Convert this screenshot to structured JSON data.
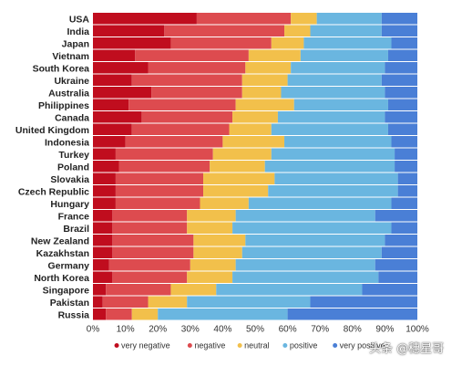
{
  "chart_data": {
    "type": "bar",
    "orientation": "horizontal",
    "stacked": true,
    "normalized": true,
    "categories": [
      "USA",
      "India",
      "Japan",
      "Vietnam",
      "South Korea",
      "Ukraine",
      "Australia",
      "Philippines",
      "Canada",
      "United Kingdom",
      "Indonesia",
      "Turkey",
      "Poland",
      "Slovakia",
      "Czech Republic",
      "Hungary",
      "France",
      "Brazil",
      "New Zealand",
      "Kazakhstan",
      "Germany",
      "North Korea",
      "Singapore",
      "Pakistan",
      "Russia"
    ],
    "series": [
      {
        "name": "very negative",
        "color": "#c00d1e",
        "values": [
          32,
          22,
          24,
          13,
          17,
          12,
          18,
          11,
          15,
          12,
          10,
          7,
          8,
          7,
          7,
          7,
          6,
          6,
          6,
          6,
          5,
          6,
          4,
          3,
          4
        ]
      },
      {
        "name": "negative",
        "color": "#dd4b4f",
        "values": [
          29,
          37,
          31,
          35,
          30,
          34,
          28,
          33,
          28,
          30,
          30,
          30,
          28,
          27,
          27,
          26,
          23,
          23,
          25,
          25,
          25,
          23,
          20,
          14,
          8
        ]
      },
      {
        "name": "neutral",
        "color": "#f2c04b",
        "values": [
          8,
          8,
          10,
          16,
          14,
          14,
          12,
          18,
          14,
          13,
          19,
          18,
          17,
          22,
          20,
          15,
          15,
          14,
          16,
          15,
          14,
          14,
          14,
          12,
          8
        ]
      },
      {
        "name": "positive",
        "color": "#6ab6e0",
        "values": [
          20,
          22,
          27,
          27,
          29,
          29,
          32,
          29,
          33,
          36,
          33,
          38,
          40,
          38,
          40,
          44,
          43,
          49,
          43,
          43,
          43,
          45,
          45,
          38,
          40
        ]
      },
      {
        "name": "very positive",
        "color": "#4a7fd6",
        "values": [
          11,
          11,
          8,
          9,
          10,
          11,
          10,
          9,
          10,
          9,
          8,
          7,
          7,
          6,
          6,
          8,
          13,
          8,
          10,
          11,
          13,
          12,
          17,
          33,
          40
        ]
      }
    ],
    "x_ticks": [
      "0%",
      "10%",
      "20%",
      "30%",
      "40%",
      "50%",
      "60%",
      "70%",
      "80%",
      "90%",
      "100%"
    ],
    "xlim": [
      0,
      100
    ],
    "grid": false,
    "legend_position": "bottom",
    "title": "",
    "xlabel": "",
    "ylabel": ""
  },
  "watermark": "头条 @穗星哥"
}
